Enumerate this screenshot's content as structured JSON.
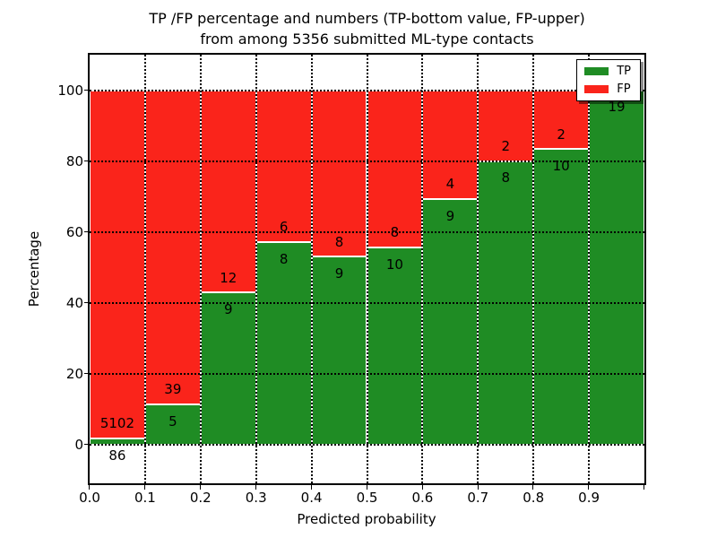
{
  "title": {
    "line1": "TP /FP percentage and numbers (TP-bottom value, FP-upper)",
    "line2": "from among 5356 submitted ML-type contacts"
  },
  "axes": {
    "xlabel": "Predicted probability",
    "ylabel": "Percentage",
    "x_tick_labels": [
      "0.0",
      "0.1",
      "0.2",
      "0.3",
      "0.4",
      "0.5",
      "0.6",
      "0.7",
      "0.8",
      "0.9"
    ],
    "y_tick_labels": [
      "0",
      "20",
      "40",
      "60",
      "80",
      "100"
    ]
  },
  "legend": {
    "entries": [
      {
        "label": "TP",
        "color": "#1f8c24"
      },
      {
        "label": "FP",
        "color": "#fa241b"
      }
    ]
  },
  "chart_data": {
    "type": "bar",
    "stacked": true,
    "title": "TP /FP percentage and numbers (TP-bottom value, FP-upper) from among 5356 submitted ML-type contacts",
    "xlabel": "Predicted probability",
    "ylabel": "Percentage",
    "xlim": [
      0.0,
      1.0
    ],
    "ylim_display": [
      -11,
      110
    ],
    "grid": true,
    "legend_position": "upper right",
    "total_submitted": 5356,
    "bins": [
      "0.0-0.1",
      "0.1-0.2",
      "0.2-0.3",
      "0.3-0.4",
      "0.4-0.5",
      "0.5-0.6",
      "0.6-0.7",
      "0.7-0.8",
      "0.8-0.9",
      "0.9-1.0"
    ],
    "x_ticks": [
      0.0,
      0.1,
      0.2,
      0.3,
      0.4,
      0.5,
      0.6,
      0.7,
      0.8,
      0.9
    ],
    "y_ticks": [
      0,
      20,
      40,
      60,
      80,
      100
    ],
    "series": [
      {
        "name": "TP",
        "color": "#1f8c24",
        "counts": [
          86,
          5,
          9,
          8,
          9,
          10,
          9,
          8,
          10,
          19
        ]
      },
      {
        "name": "FP",
        "color": "#fa241b",
        "counts": [
          5102,
          39,
          12,
          6,
          8,
          8,
          4,
          2,
          2,
          0
        ]
      }
    ],
    "tp_percent": [
      1.66,
      11.36,
      42.86,
      57.14,
      52.94,
      55.56,
      69.23,
      80.0,
      83.33,
      100.0
    ],
    "fp_labels": [
      "5102",
      "39",
      "12",
      "6",
      "8",
      "8",
      "4",
      "2",
      "2",
      ""
    ],
    "tp_labels": [
      "86",
      "5",
      "9",
      "8",
      "9",
      "10",
      "9",
      "8",
      "10",
      "19"
    ]
  }
}
